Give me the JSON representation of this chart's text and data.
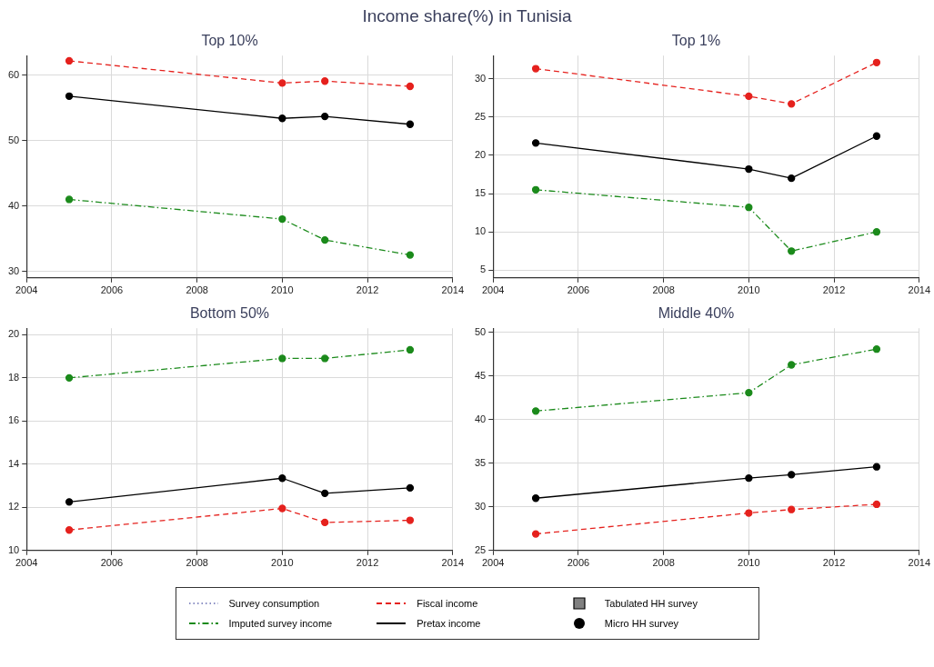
{
  "chart_data": [
    {
      "type": "line",
      "title": "Top 10%",
      "annotations": [
        "Income share(%) in Tunisia"
      ],
      "x": [
        2005,
        2010,
        2011,
        2013
      ],
      "xlim": [
        2004,
        2014
      ],
      "xticks": [
        2004,
        2006,
        2008,
        2010,
        2012,
        2014
      ],
      "ylim": [
        29,
        63
      ],
      "yticks": [
        30,
        40,
        50,
        60
      ],
      "grid": true,
      "marker": "circle",
      "legend": "bottom",
      "series": [
        {
          "name": "Survey consumption",
          "color": "#8a8fc4",
          "line_style": "dotted",
          "marker": "none",
          "values": [
            null,
            null,
            null,
            null
          ]
        },
        {
          "name": "Imputed survey income",
          "color": "#1b8a1b",
          "line_style": "dashdot",
          "values": [
            41,
            38,
            34.8,
            32.5
          ]
        },
        {
          "name": "Fiscal income",
          "color": "#e5211d",
          "line_style": "dashed",
          "values": [
            62.2,
            58.8,
            59.1,
            58.3
          ]
        },
        {
          "name": "Pretax income",
          "color": "#000000",
          "line_style": "solid",
          "values": [
            56.8,
            53.4,
            53.7,
            52.5
          ]
        },
        {
          "name": "Tabulated HH survey",
          "color": "#808080",
          "line_style": "none",
          "marker": "square",
          "values": [
            null,
            null,
            null,
            null
          ]
        },
        {
          "name": "Micro HH survey",
          "color": "#000000",
          "line_style": "none",
          "marker": "circle",
          "values": [
            null,
            null,
            null,
            null
          ]
        }
      ]
    },
    {
      "type": "line",
      "title": "Top 1%",
      "x": [
        2005,
        2010,
        2011,
        2013
      ],
      "xlim": [
        2004,
        2014
      ],
      "xticks": [
        2004,
        2006,
        2008,
        2010,
        2012,
        2014
      ],
      "ylim": [
        4,
        33
      ],
      "yticks": [
        5,
        10,
        15,
        20,
        25,
        30
      ],
      "grid": true,
      "marker": "circle",
      "series": [
        {
          "color": "#1b8a1b",
          "line_style": "dashdot",
          "values": [
            15.5,
            13.2,
            7.5,
            10
          ]
        },
        {
          "color": "#e5211d",
          "line_style": "dashed",
          "values": [
            31.3,
            27.7,
            26.7,
            32.1
          ]
        },
        {
          "color": "#000000",
          "line_style": "solid",
          "values": [
            21.6,
            18.2,
            17,
            22.5
          ]
        }
      ]
    },
    {
      "type": "line",
      "title": "Bottom 50%",
      "x": [
        2005,
        2010,
        2011,
        2013
      ],
      "xlim": [
        2004,
        2014
      ],
      "xticks": [
        2004,
        2006,
        2008,
        2010,
        2012,
        2014
      ],
      "ylim": [
        10,
        20.3
      ],
      "yticks": [
        10,
        12,
        14,
        16,
        18,
        20
      ],
      "grid": true,
      "marker": "circle",
      "series": [
        {
          "color": "#1b8a1b",
          "line_style": "dashdot",
          "values": [
            18,
            18.9,
            18.9,
            19.3
          ]
        },
        {
          "color": "#e5211d",
          "line_style": "dashed",
          "values": [
            10.95,
            11.95,
            11.3,
            11.4
          ]
        },
        {
          "color": "#000000",
          "line_style": "solid",
          "values": [
            12.25,
            13.35,
            12.65,
            12.9
          ]
        }
      ]
    },
    {
      "type": "line",
      "title": "Middle 40%",
      "x": [
        2005,
        2010,
        2011,
        2013
      ],
      "xlim": [
        2004,
        2014
      ],
      "xticks": [
        2004,
        2006,
        2008,
        2010,
        2012,
        2014
      ],
      "ylim": [
        25,
        50.5
      ],
      "yticks": [
        25,
        30,
        35,
        40,
        45,
        50
      ],
      "grid": true,
      "marker": "circle",
      "series": [
        {
          "color": "#1b8a1b",
          "line_style": "dashdot",
          "values": [
            41,
            43.1,
            46.3,
            48.1
          ]
        },
        {
          "color": "#e5211d",
          "line_style": "dashed",
          "values": [
            26.9,
            29.3,
            29.7,
            30.3
          ]
        },
        {
          "color": "#000000",
          "line_style": "solid",
          "values": [
            31,
            33.3,
            33.7,
            34.6
          ]
        }
      ]
    }
  ]
}
